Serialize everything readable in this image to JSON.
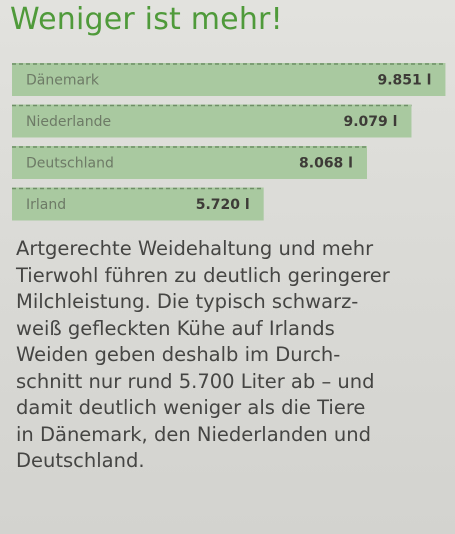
{
  "title": "Weniger ist mehr!",
  "chart_data": {
    "type": "bar",
    "orientation": "horizontal",
    "title": "Weniger ist mehr!",
    "categories": [
      "Dänemark",
      "Niederlande",
      "Deutschland",
      "Irland"
    ],
    "values": [
      9851,
      9079,
      8068,
      5720
    ],
    "value_labels": [
      "9.851 l",
      "9.079 l",
      "8.068 l",
      "5.720 l"
    ],
    "xlabel": "",
    "ylabel": "",
    "xlim": [
      0,
      10000
    ],
    "grid": false,
    "bar_color": "#a9c9a0",
    "dash_color": "#6e8f66"
  },
  "body_lines": [
    "Artgerechte Weidehaltung und mehr",
    "Tierwohl führen zu deutlich geringerer",
    "Milchleistung. Die typisch schwarz-",
    "weiß gefleckten Kühe auf Irlands",
    "Weiden geben deshalb im Durch-",
    "schnitt nur rund 5.700 Liter ab – und",
    "damit deutlich weniger als die Tiere",
    "in Dänemark, den Niederlanden und",
    "Deutschland."
  ]
}
